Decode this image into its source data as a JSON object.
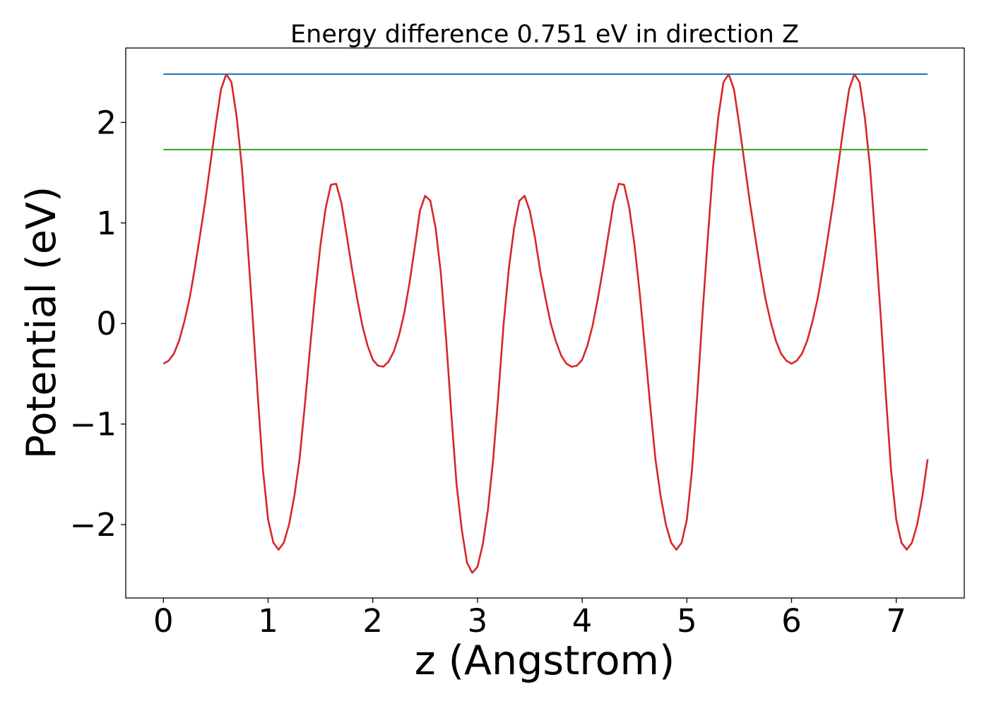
{
  "chart_data": {
    "type": "line",
    "title": "Energy difference 0.751 eV in direction Z",
    "xlabel": "z (Angstrom)",
    "ylabel": "Potential (eV)",
    "xlim": [
      -0.36,
      7.65
    ],
    "ylim": [
      -2.73,
      2.74
    ],
    "xticks": [
      0,
      1,
      2,
      3,
      4,
      5,
      6,
      7
    ],
    "xtick_labels": [
      "0",
      "1",
      "2",
      "3",
      "4",
      "5",
      "6",
      "7"
    ],
    "yticks": [
      -2,
      -1,
      0,
      1,
      2
    ],
    "ytick_labels": [
      "−2",
      "−1",
      "0",
      "1",
      "2"
    ],
    "grid": false,
    "legend": "none",
    "series": [
      {
        "color": "#d62728",
        "points": [
          [
            0.0,
            -0.4
          ],
          [
            0.05,
            -0.37
          ],
          [
            0.1,
            -0.3
          ],
          [
            0.15,
            -0.17
          ],
          [
            0.2,
            0.02
          ],
          [
            0.25,
            0.25
          ],
          [
            0.3,
            0.55
          ],
          [
            0.35,
            0.88
          ],
          [
            0.4,
            1.22
          ],
          [
            0.45,
            1.6
          ],
          [
            0.5,
            1.98
          ],
          [
            0.55,
            2.33
          ],
          [
            0.6,
            2.48
          ],
          [
            0.65,
            2.4
          ],
          [
            0.7,
            2.05
          ],
          [
            0.75,
            1.55
          ],
          [
            0.8,
            0.85
          ],
          [
            0.85,
            0.1
          ],
          [
            0.9,
            -0.7
          ],
          [
            0.95,
            -1.45
          ],
          [
            1.0,
            -1.95
          ],
          [
            1.05,
            -2.18
          ],
          [
            1.1,
            -2.25
          ],
          [
            1.15,
            -2.18
          ],
          [
            1.2,
            -2.0
          ],
          [
            1.25,
            -1.72
          ],
          [
            1.3,
            -1.35
          ],
          [
            1.35,
            -0.82
          ],
          [
            1.4,
            -0.25
          ],
          [
            1.45,
            0.3
          ],
          [
            1.5,
            0.78
          ],
          [
            1.55,
            1.15
          ],
          [
            1.6,
            1.38
          ],
          [
            1.65,
            1.39
          ],
          [
            1.7,
            1.2
          ],
          [
            1.75,
            0.88
          ],
          [
            1.8,
            0.55
          ],
          [
            1.85,
            0.25
          ],
          [
            1.9,
            -0.02
          ],
          [
            1.95,
            -0.22
          ],
          [
            2.0,
            -0.36
          ],
          [
            2.05,
            -0.42
          ],
          [
            2.1,
            -0.43
          ],
          [
            2.15,
            -0.38
          ],
          [
            2.2,
            -0.28
          ],
          [
            2.25,
            -0.12
          ],
          [
            2.3,
            0.1
          ],
          [
            2.35,
            0.4
          ],
          [
            2.4,
            0.75
          ],
          [
            2.45,
            1.12
          ],
          [
            2.5,
            1.27
          ],
          [
            2.55,
            1.22
          ],
          [
            2.6,
            0.95
          ],
          [
            2.65,
            0.5
          ],
          [
            2.7,
            -0.15
          ],
          [
            2.75,
            -0.9
          ],
          [
            2.8,
            -1.6
          ],
          [
            2.85,
            -2.05
          ],
          [
            2.9,
            -2.38
          ],
          [
            2.95,
            -2.48
          ],
          [
            3.0,
            -2.42
          ],
          [
            3.05,
            -2.2
          ],
          [
            3.1,
            -1.85
          ],
          [
            3.15,
            -1.35
          ],
          [
            3.2,
            -0.7
          ],
          [
            3.25,
            0.0
          ],
          [
            3.3,
            0.55
          ],
          [
            3.35,
            0.95
          ],
          [
            3.4,
            1.22
          ],
          [
            3.45,
            1.27
          ],
          [
            3.5,
            1.12
          ],
          [
            3.55,
            0.85
          ],
          [
            3.6,
            0.52
          ],
          [
            3.65,
            0.25
          ],
          [
            3.7,
            0.0
          ],
          [
            3.75,
            -0.18
          ],
          [
            3.8,
            -0.32
          ],
          [
            3.85,
            -0.4
          ],
          [
            3.9,
            -0.43
          ],
          [
            3.95,
            -0.42
          ],
          [
            4.0,
            -0.36
          ],
          [
            4.05,
            -0.22
          ],
          [
            4.1,
            -0.02
          ],
          [
            4.15,
            0.25
          ],
          [
            4.2,
            0.55
          ],
          [
            4.25,
            0.88
          ],
          [
            4.3,
            1.2
          ],
          [
            4.35,
            1.39
          ],
          [
            4.4,
            1.38
          ],
          [
            4.45,
            1.15
          ],
          [
            4.5,
            0.78
          ],
          [
            4.55,
            0.3
          ],
          [
            4.6,
            -0.25
          ],
          [
            4.65,
            -0.82
          ],
          [
            4.7,
            -1.35
          ],
          [
            4.75,
            -1.72
          ],
          [
            4.8,
            -2.0
          ],
          [
            4.85,
            -2.18
          ],
          [
            4.9,
            -2.25
          ],
          [
            4.95,
            -2.18
          ],
          [
            5.0,
            -1.95
          ],
          [
            5.05,
            -1.45
          ],
          [
            5.1,
            -0.7
          ],
          [
            5.15,
            0.1
          ],
          [
            5.2,
            0.85
          ],
          [
            5.25,
            1.55
          ],
          [
            5.3,
            2.05
          ],
          [
            5.35,
            2.4
          ],
          [
            5.4,
            2.48
          ],
          [
            5.45,
            2.33
          ],
          [
            5.5,
            1.98
          ],
          [
            5.55,
            1.6
          ],
          [
            5.6,
            1.22
          ],
          [
            5.65,
            0.88
          ],
          [
            5.7,
            0.55
          ],
          [
            5.75,
            0.25
          ],
          [
            5.8,
            0.02
          ],
          [
            5.85,
            -0.17
          ],
          [
            5.9,
            -0.3
          ],
          [
            5.95,
            -0.37
          ],
          [
            6.0,
            -0.4
          ]
        ]
      },
      {
        "color": "#1f77b4",
        "x": [
          0.0,
          7.3
        ],
        "values": [
          2.48,
          2.48
        ]
      },
      {
        "color": "#2ca02c",
        "x": [
          0.0,
          7.3
        ],
        "values": [
          1.73,
          1.73
        ]
      }
    ]
  }
}
